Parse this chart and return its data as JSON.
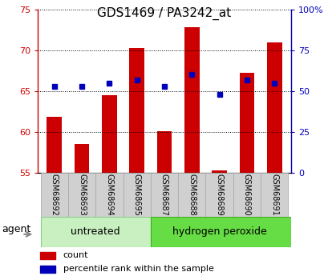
{
  "title": "GDS1469 / PA3242_at",
  "samples": [
    "GSM68692",
    "GSM68693",
    "GSM68694",
    "GSM68695",
    "GSM68687",
    "GSM68688",
    "GSM68689",
    "GSM68690",
    "GSM68691"
  ],
  "counts": [
    61.8,
    58.5,
    64.5,
    70.3,
    60.1,
    72.8,
    55.3,
    67.2,
    71.0
  ],
  "percentiles_right": [
    53,
    53,
    55,
    57,
    53,
    60,
    48,
    57,
    55
  ],
  "ylim_left": [
    55,
    75
  ],
  "ylim_right": [
    0,
    100
  ],
  "yticks_left": [
    55,
    60,
    65,
    70,
    75
  ],
  "yticks_right": [
    0,
    25,
    50,
    75,
    100
  ],
  "ytick_labels_right": [
    "0",
    "25",
    "50",
    "75",
    "100%"
  ],
  "groups": [
    {
      "label": "untreated",
      "start": 0,
      "end": 3
    },
    {
      "label": "hydrogen peroxide",
      "start": 4,
      "end": 8
    }
  ],
  "bar_color": "#cc0000",
  "dot_color": "#0000bb",
  "bar_width": 0.55,
  "group_color_untreated": "#c8f0c0",
  "group_color_h2o2": "#66dd44",
  "group_border_untreated": "#88cc88",
  "group_border_h2o2": "#44aa22",
  "label_box_color": "#d0d0d0",
  "label_box_border": "#aaaaaa",
  "agent_label": "agent",
  "legend_count_label": "count",
  "legend_percentile_label": "percentile rank within the sample",
  "left_axis_color": "#cc0000",
  "right_axis_color": "#0000bb",
  "title_fontsize": 11,
  "tick_fontsize": 8,
  "sample_fontsize": 7,
  "group_fontsize": 9,
  "legend_fontsize": 8
}
